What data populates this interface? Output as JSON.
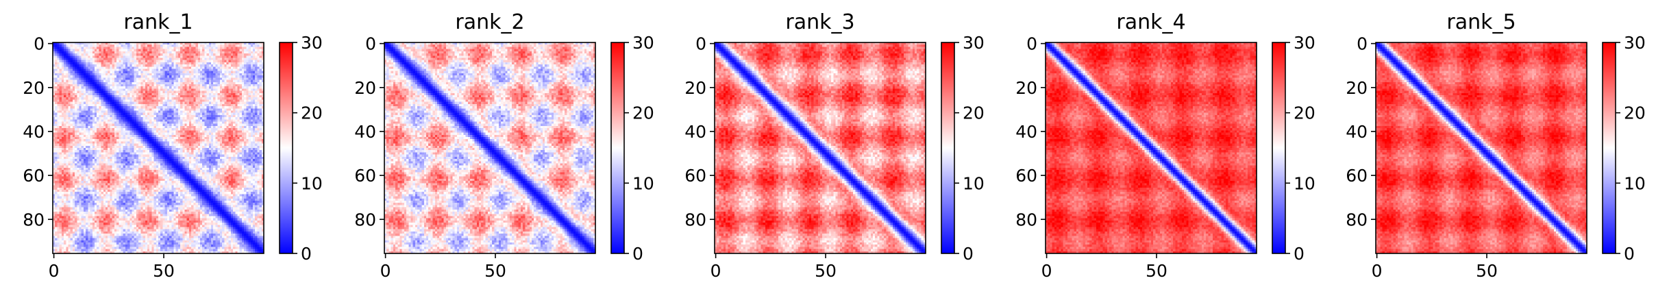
{
  "chart_data": [
    {
      "type": "heatmap",
      "title": "rank_1",
      "matrix_size": 96,
      "xticks": [
        0,
        50
      ],
      "yticks": [
        0,
        20,
        40,
        60,
        80
      ],
      "colorbar": {
        "min": 0,
        "max": 30,
        "ticks": [
          0,
          10,
          20,
          30
        ],
        "colormap": "bwr",
        "low": "#0000ff",
        "mid": "#ffffff",
        "high": "#ff0000"
      },
      "pattern": {
        "far_level": 0.52,
        "ridge_width": 3.5,
        "blob_period": 19,
        "blob_strength": 0.26,
        "noise": 0.1
      }
    },
    {
      "type": "heatmap",
      "title": "rank_2",
      "matrix_size": 96,
      "xticks": [
        0,
        50
      ],
      "yticks": [
        0,
        20,
        40,
        60,
        80
      ],
      "colorbar": {
        "min": 0,
        "max": 30,
        "ticks": [
          0,
          10,
          20,
          30
        ],
        "colormap": "bwr",
        "low": "#0000ff",
        "mid": "#ffffff",
        "high": "#ff0000"
      },
      "pattern": {
        "far_level": 0.56,
        "ridge_width": 3.3,
        "blob_period": 19,
        "blob_strength": 0.24,
        "noise": 0.1
      }
    },
    {
      "type": "heatmap",
      "title": "rank_3",
      "matrix_size": 96,
      "xticks": [
        0,
        50
      ],
      "yticks": [
        0,
        20,
        40,
        60,
        80
      ],
      "colorbar": {
        "min": 0,
        "max": 30,
        "ticks": [
          0,
          10,
          20,
          30
        ],
        "colormap": "bwr",
        "low": "#0000ff",
        "mid": "#ffffff",
        "high": "#ff0000"
      },
      "pattern": {
        "far_level": 0.74,
        "ridge_width": 3.2,
        "blob_period": 19,
        "blob_strength": 0.2,
        "noise": 0.08
      }
    },
    {
      "type": "heatmap",
      "title": "rank_4",
      "matrix_size": 96,
      "xticks": [
        0,
        50
      ],
      "yticks": [
        0,
        20,
        40,
        60,
        80
      ],
      "colorbar": {
        "min": 0,
        "max": 30,
        "ticks": [
          0,
          10,
          20,
          30
        ],
        "colormap": "bwr",
        "low": "#0000ff",
        "mid": "#ffffff",
        "high": "#ff0000"
      },
      "pattern": {
        "far_level": 0.86,
        "ridge_width": 2.8,
        "blob_period": 19,
        "blob_strength": 0.12,
        "noise": 0.06
      }
    },
    {
      "type": "heatmap",
      "title": "rank_5",
      "matrix_size": 96,
      "xticks": [
        0,
        50
      ],
      "yticks": [
        0,
        20,
        40,
        60,
        80
      ],
      "colorbar": {
        "min": 0,
        "max": 30,
        "ticks": [
          0,
          10,
          20,
          30
        ],
        "colormap": "bwr",
        "low": "#0000ff",
        "mid": "#ffffff",
        "high": "#ff0000"
      },
      "pattern": {
        "far_level": 0.84,
        "ridge_width": 2.9,
        "blob_period": 19,
        "blob_strength": 0.14,
        "noise": 0.06
      }
    }
  ]
}
